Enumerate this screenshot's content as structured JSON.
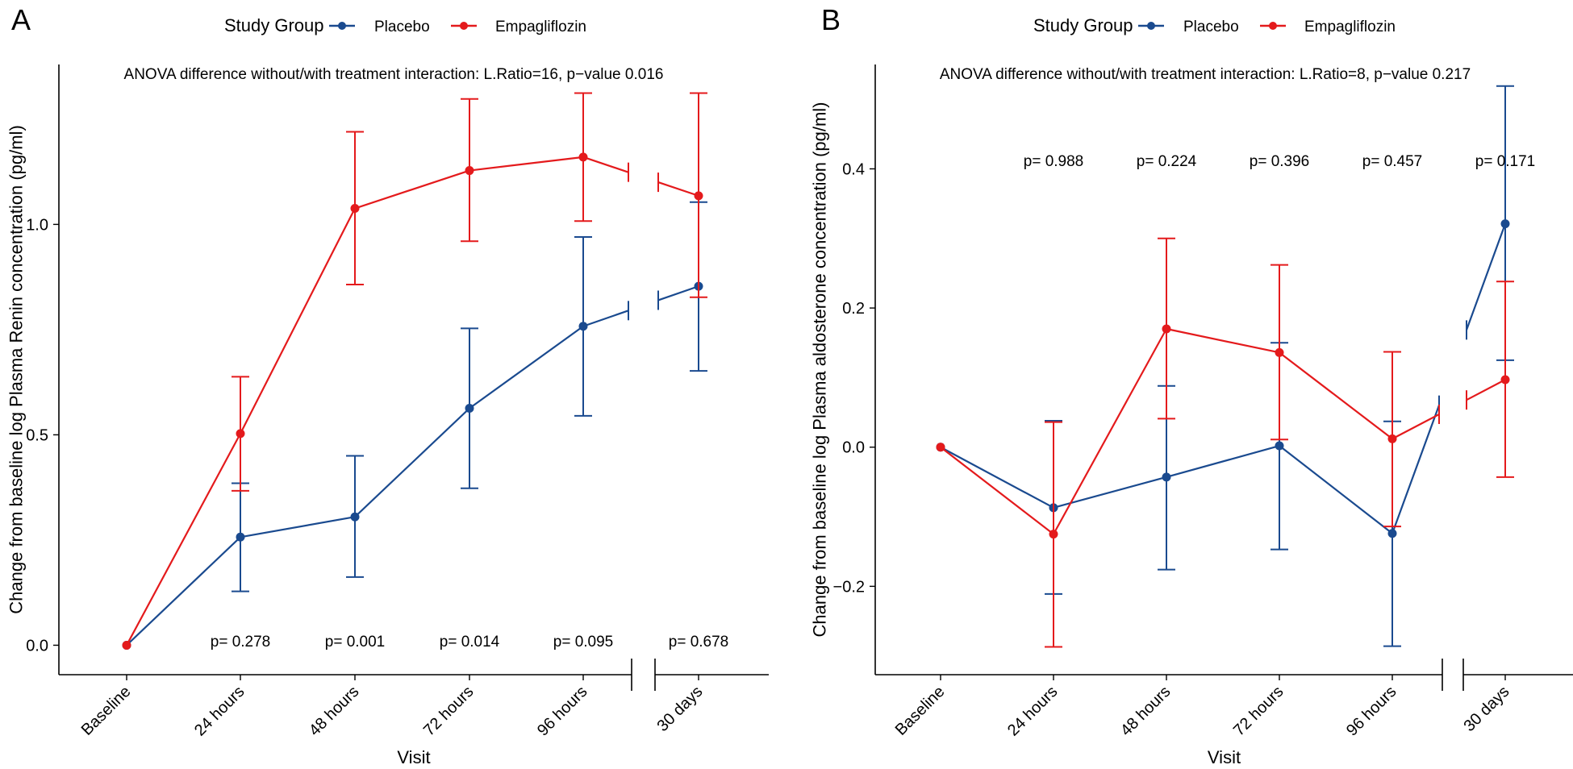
{
  "legend": {
    "title": "Study Group",
    "entries": [
      "Placebo",
      "Empagliflozin"
    ]
  },
  "colors": {
    "Placebo": "#1a4a8f",
    "Empagliflozin": "#e41a1c"
  },
  "chart_data": [
    {
      "type": "line",
      "panel": "A",
      "annotation": "ANOVA difference without/with treatment interaction: L.Ratio=16, p−value 0.016",
      "xlabel": "Visit",
      "ylabel": "Change from baseline log Plasma Renin concentration (pg/ml)",
      "categories": [
        "Baseline",
        "24 hours",
        "48 hours",
        "72 hours",
        "96 hours",
        "30 days"
      ],
      "x_axis_break": "between 96 hours and 30 days",
      "ylim": [
        -0.07,
        1.38
      ],
      "yticks": [
        0.0,
        0.5,
        1.0
      ],
      "ytick_labels": [
        "0.0",
        "0.5",
        "1.0"
      ],
      "series": [
        {
          "name": "Placebo",
          "values": [
            0.0,
            0.257,
            0.305,
            0.563,
            0.758,
            0.853
          ],
          "lower": [
            null,
            0.128,
            0.162,
            0.373,
            0.545,
            0.652
          ],
          "upper": [
            null,
            0.385,
            0.45,
            0.753,
            0.97,
            1.053
          ]
        },
        {
          "name": "Empagliflozin",
          "values": [
            0.0,
            0.503,
            1.038,
            1.128,
            1.16,
            1.068
          ],
          "lower": [
            null,
            0.367,
            0.857,
            0.96,
            1.008,
            0.827
          ],
          "upper": [
            null,
            0.638,
            1.22,
            1.298,
            1.312,
            1.312
          ]
        }
      ],
      "pvalues": [
        {
          "category": "24 hours",
          "text": "p= 0.278",
          "y": 0.01
        },
        {
          "category": "48 hours",
          "text": "p= 0.001",
          "y": 0.01
        },
        {
          "category": "72 hours",
          "text": "p= 0.014",
          "y": 0.01
        },
        {
          "category": "96 hours",
          "text": "p= 0.095",
          "y": 0.01
        },
        {
          "category": "30 days",
          "text": "p= 0.678",
          "y": 0.01
        }
      ]
    },
    {
      "type": "line",
      "panel": "B",
      "annotation": "ANOVA difference without/with treatment interaction: L.Ratio=8, p−value 0.217",
      "xlabel": "Visit",
      "ylabel": "Change from baseline log Plasma aldosterone concentration (pg/ml)",
      "categories": [
        "Baseline",
        "24 hours",
        "48 hours",
        "72 hours",
        "96 hours",
        "30 days"
      ],
      "x_axis_break": "between 96 hours and 30 days",
      "ylim": [
        -0.327,
        0.55
      ],
      "yticks": [
        -0.2,
        0.0,
        0.2,
        0.4
      ],
      "ytick_labels": [
        "−0.2",
        "0.0",
        "0.2",
        "0.4"
      ],
      "series": [
        {
          "name": "Placebo",
          "values": [
            0.0,
            -0.087,
            -0.043,
            0.002,
            -0.124,
            0.321
          ],
          "lower": [
            null,
            -0.211,
            -0.176,
            -0.147,
            -0.286,
            0.125
          ],
          "upper": [
            null,
            0.038,
            0.088,
            0.15,
            0.037,
            0.519
          ]
        },
        {
          "name": "Empagliflozin",
          "values": [
            0.0,
            -0.125,
            0.17,
            0.136,
            0.012,
            0.097
          ],
          "lower": [
            null,
            -0.287,
            0.041,
            0.011,
            -0.114,
            -0.043
          ],
          "upper": [
            null,
            0.036,
            0.3,
            0.262,
            0.137,
            0.238
          ]
        }
      ],
      "pvalues": [
        {
          "category": "24 hours",
          "text": "p= 0.988",
          "y": 0.412
        },
        {
          "category": "48 hours",
          "text": "p= 0.224",
          "y": 0.412
        },
        {
          "category": "72 hours",
          "text": "p= 0.396",
          "y": 0.412
        },
        {
          "category": "96 hours",
          "text": "p= 0.457",
          "y": 0.412
        },
        {
          "category": "30 days",
          "text": "p= 0.171",
          "y": 0.412
        }
      ]
    }
  ]
}
